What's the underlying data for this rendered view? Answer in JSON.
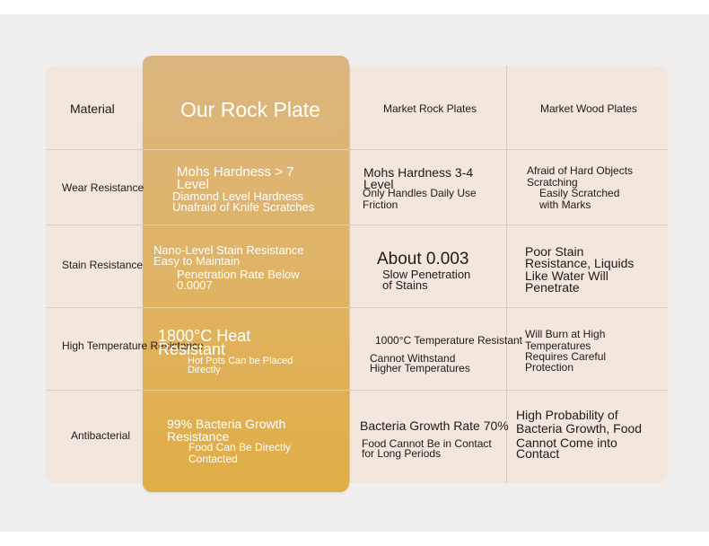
{
  "header": {
    "material": "Material",
    "our": "Our Rock Plate",
    "market_rock": "Market Rock Plates",
    "market_wood": "Market Wood Plates"
  },
  "rows": [
    {
      "label": "Wear Resistance",
      "ours": [
        "Mohs Hardness > 7",
        "Level",
        "Diamond Level Hardness",
        "Unafraid of Knife Scratches"
      ],
      "rock": [
        "Mohs Hardness 3-4",
        "Level",
        "Only Handles Daily Use",
        "Friction"
      ],
      "wood": [
        "Afraid of Hard Objects",
        "Scratching",
        "Easily Scratched",
        "with Marks"
      ]
    },
    {
      "label": "Stain Resistance",
      "ours": [
        "Nano-Level Stain Resistance",
        "Easy to Maintain",
        "Penetration Rate Below",
        "0.0007"
      ],
      "rock": [
        "About 0.003",
        "Slow Penetration",
        "of Stains"
      ],
      "wood": [
        "Poor Stain",
        "Resistance, Liquids",
        "Like Water Will",
        "Penetrate"
      ]
    },
    {
      "label": "High Temperature Resistance",
      "ours": [
        "1800°C Heat",
        "Resistant",
        "Hot Pots Can be Placed",
        "Directly"
      ],
      "rock": [
        "1000°C Temperature Resistant",
        "Cannot Withstand",
        "Higher Temperatures"
      ],
      "wood": [
        "Will Burn at High",
        "Temperatures",
        "Requires Careful",
        "Protection"
      ]
    },
    {
      "label": "Antibacterial",
      "ours": [
        "99% Bacteria Growth",
        "Resistance",
        "Food Can Be Directly",
        "Contacted"
      ],
      "rock": [
        "Bacteria Growth Rate 70%",
        "Food Cannot Be in Contact",
        "for Long Periods"
      ],
      "wood": [
        "High Probability of",
        "Bacteria Growth, Food",
        "Cannot Come into",
        "Contact"
      ]
    }
  ]
}
